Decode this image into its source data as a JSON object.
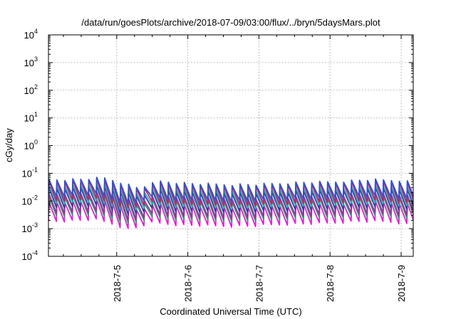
{
  "chart_data": {
    "type": "line",
    "title": "/data/run/goesPlots/archive/2018-07-09/03:00/flux/../bryn/5daysMars.plot",
    "xlabel": "Coordinated Universal Time (UTC)",
    "ylabel": "cGy/day",
    "yscale": "log",
    "ylim_exp": [
      -4,
      4
    ],
    "y_ticks": [
      {
        "base": "10",
        "exp": "4"
      },
      {
        "base": "10",
        "exp": "3"
      },
      {
        "base": "10",
        "exp": "2"
      },
      {
        "base": "10",
        "exp": "1"
      },
      {
        "base": "10",
        "exp": "0"
      },
      {
        "base": "10",
        "exp": "-1"
      },
      {
        "base": "10",
        "exp": "-2"
      },
      {
        "base": "10",
        "exp": "-3"
      },
      {
        "base": "10",
        "exp": "-4"
      }
    ],
    "x_range_days": [
      4.04,
      9.17
    ],
    "x_ticks": [
      {
        "label": "2018-7-5",
        "day": 5
      },
      {
        "label": "2018-7-6",
        "day": 6
      },
      {
        "label": "2018-7-7",
        "day": 7
      },
      {
        "label": "2018-7-8",
        "day": 8
      },
      {
        "label": "2018-7-9",
        "day": 9
      }
    ],
    "grid": true,
    "period_days": 0.112,
    "series": [
      {
        "color": "#3050d8",
        "peak_log10": -1.25,
        "trough_log10": -1.85
      },
      {
        "color": "#d02050",
        "peak_log10": -1.3,
        "trough_log10": -2.0
      },
      {
        "color": "#20b8c8",
        "peak_log10": -1.45,
        "trough_log10": -2.1
      },
      {
        "color": "#3a3a9a",
        "peak_log10": -1.55,
        "trough_log10": -2.25
      },
      {
        "color": "#a030a0",
        "peak_log10": -1.75,
        "trough_log10": -2.45
      },
      {
        "color": "#20a060",
        "peak_log10": -1.85,
        "trough_log10": -2.55
      },
      {
        "color": "#e020d0",
        "peak_log10": -2.05,
        "trough_log10": -2.75
      }
    ],
    "envelope": {
      "days": [
        4.04,
        4.5,
        4.8,
        5.0,
        5.3,
        5.6,
        6.0,
        6.5,
        7.0,
        7.5,
        8.0,
        8.5,
        9.0,
        9.17
      ],
      "offset_log10": [
        0.05,
        0.07,
        0.12,
        0.0,
        -0.25,
        0.0,
        -0.08,
        -0.12,
        -0.12,
        -0.05,
        -0.03,
        0.05,
        0.03,
        -0.05
      ]
    }
  }
}
